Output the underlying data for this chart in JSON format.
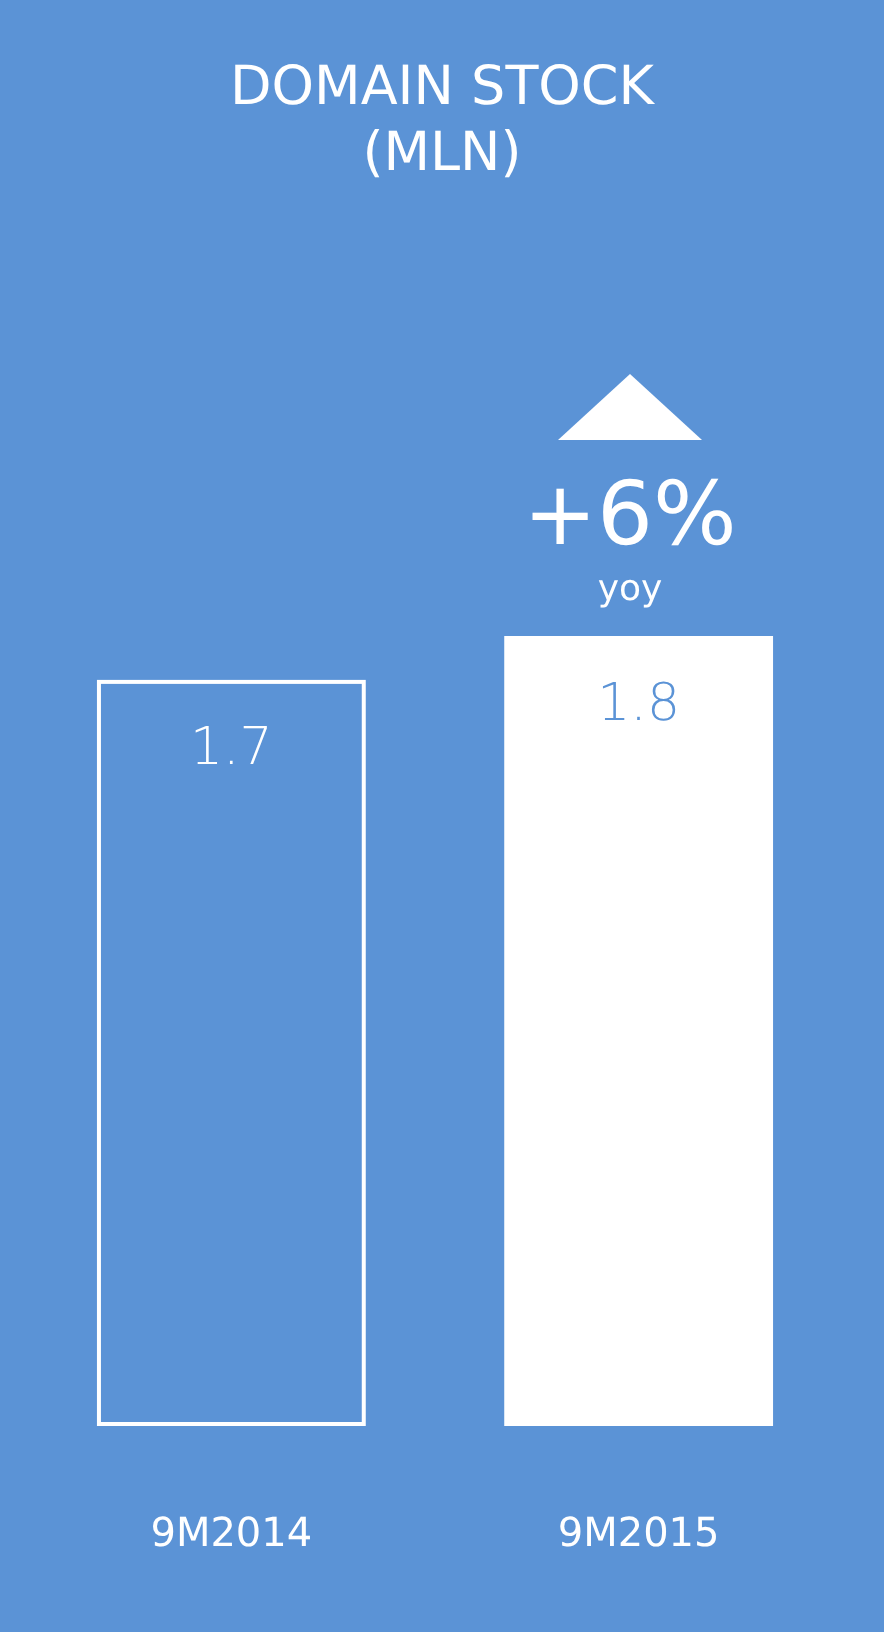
{
  "chart_data": {
    "type": "bar",
    "title": "DOMAIN STOCK (MLN)",
    "categories": [
      "9M2014",
      "9M2015"
    ],
    "values": [
      1.7,
      1.8
    ],
    "colors": [
      "#5b93d6",
      "#ffffff"
    ],
    "data_labels": true,
    "annotations": [
      "+6%",
      "yoy"
    ]
  }
}
